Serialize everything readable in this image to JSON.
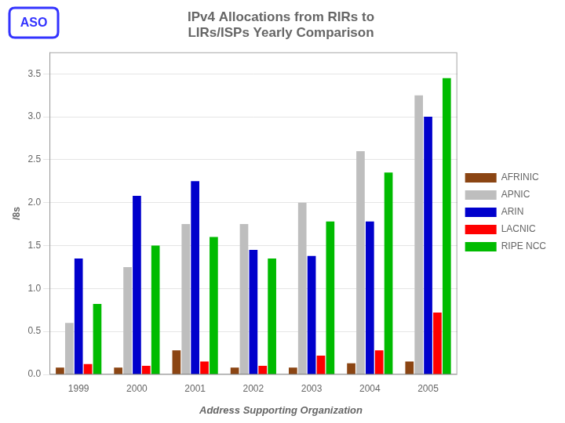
{
  "chart_data": {
    "type": "bar",
    "title": [
      "IPv4 Allocations from RIRs to",
      "LIRs/ISPs Yearly Comparison"
    ],
    "subtitle": "Address Supporting Organization",
    "annotations": [
      "ASO"
    ],
    "ylabel": "/8s",
    "categories": [
      "1999",
      "2000",
      "2001",
      "2002",
      "2003",
      "2004",
      "2005"
    ],
    "series": [
      {
        "name": "AFRINIC",
        "color": "#8B4513",
        "values": [
          0.08,
          0.08,
          0.28,
          0.08,
          0.08,
          0.13,
          0.15
        ]
      },
      {
        "name": "APNIC",
        "color": "#BEBEBE",
        "values": [
          0.6,
          1.25,
          1.75,
          1.75,
          2.0,
          2.6,
          3.25
        ]
      },
      {
        "name": "ARIN",
        "color": "#0000CC",
        "values": [
          1.35,
          2.08,
          2.25,
          1.45,
          1.38,
          1.78,
          3.0
        ]
      },
      {
        "name": "LACNIC",
        "color": "#FF0000",
        "values": [
          0.12,
          0.1,
          0.15,
          0.1,
          0.22,
          0.28,
          0.72
        ]
      },
      {
        "name": "RIPE NCC",
        "color": "#00BB00",
        "values": [
          0.82,
          1.5,
          1.6,
          1.35,
          1.78,
          2.35,
          3.45
        ]
      }
    ],
    "ylim": [
      0,
      3.75
    ],
    "yticks": [
      {
        "value": 0.0,
        "label": "0.0"
      },
      0.5,
      {
        "value": 1.0,
        "label": "1.0"
      },
      1.5,
      {
        "value": 2.0,
        "label": "2.0"
      },
      2.5,
      {
        "value": 3.0,
        "label": "3.0"
      },
      3.5
    ],
    "grid": true,
    "legend": "right"
  }
}
